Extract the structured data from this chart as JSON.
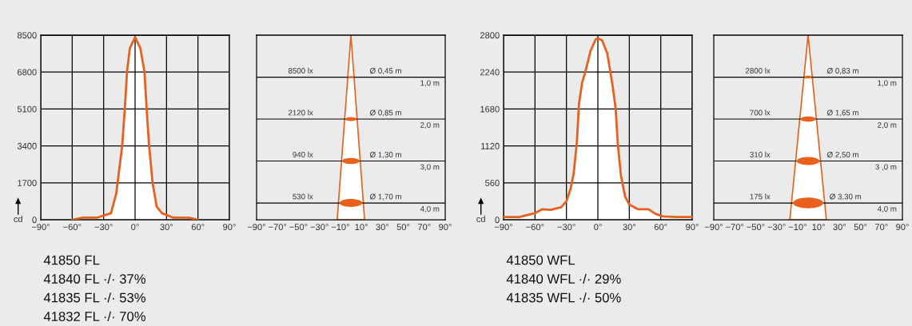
{
  "chart_data": [
    {
      "type": "area",
      "ylabel": "cd",
      "x": [
        -60,
        -50,
        -36,
        -29.6,
        -23,
        -18,
        -15.4,
        -12.3,
        -9.8,
        -7.7,
        -5,
        0,
        5,
        9,
        11,
        13.4,
        16.7,
        20.6,
        25.7,
        36,
        51,
        60
      ],
      "series": [
        {
          "color": "#e8601c",
          "values": [
            0,
            100,
            100,
            200,
            300,
            1200,
            2200,
            3400,
            5100,
            6800,
            7900,
            8400,
            7900,
            6800,
            5100,
            3400,
            1700,
            600,
            300,
            100,
            100,
            0
          ]
        }
      ],
      "xlim": [
        -90,
        90
      ],
      "xticks": [
        {
          "value": -90,
          "label": "−90°"
        },
        {
          "value": -60,
          "label": "−60°"
        },
        {
          "value": -30,
          "label": "−30°"
        },
        {
          "value": 0,
          "label": "0°"
        },
        {
          "value": 30,
          "label": "30°"
        },
        {
          "value": 60,
          "label": "60°"
        },
        {
          "value": 90,
          "label": "90°"
        }
      ],
      "ylim": [
        0,
        8500
      ],
      "yticks": [
        0,
        1700,
        3400,
        5100,
        6800,
        8500
      ],
      "grid": true,
      "annotations": [
        "41850 FL",
        "41840 FL ·/· 37%",
        "41835 FL ·/· 53%",
        "41832 FL ·/· 70%"
      ]
    },
    {
      "type": "bubble",
      "x": [
        0,
        0,
        0,
        0
      ],
      "values": [
        1,
        2,
        3,
        4
      ],
      "sizes": [
        0.07,
        0.25,
        0.58,
        1
      ],
      "color": "#e8601c",
      "annotations": [
        "8500 lx",
        "Ø 0,45 m",
        "2120 lx",
        "Ø 0,85 m",
        "940 lx",
        "Ø 1,30 m",
        "530 lx",
        "Ø 1,70 m"
      ],
      "ref_lines": [
        {
          "axis": "y",
          "value": 1,
          "label": "1,0 m"
        },
        {
          "axis": "y",
          "value": 2,
          "label": "2,0 m"
        },
        {
          "axis": "y",
          "value": 3,
          "label": "3,0 m"
        },
        {
          "axis": "y",
          "value": 4,
          "label": "4,0 m"
        }
      ],
      "xlim": [
        -90,
        90
      ],
      "xticks": [
        {
          "value": -90,
          "label": "−90°"
        },
        {
          "value": -70,
          "label": "−70°"
        },
        {
          "value": -50,
          "label": "−50°"
        },
        {
          "value": -30,
          "label": "−30°"
        },
        {
          "value": -10,
          "label": "−10°"
        },
        {
          "value": 10,
          "label": "10°"
        },
        {
          "value": 30,
          "label": "30°"
        },
        {
          "value": 50,
          "label": "50°"
        },
        {
          "value": 70,
          "label": "70°"
        },
        {
          "value": 90,
          "label": "90°"
        }
      ],
      "ylim": [
        4.4,
        0
      ],
      "tick_labels": "x"
    },
    {
      "type": "area",
      "ylabel": "cd",
      "x": [
        -90,
        -75,
        -65,
        -60,
        -53,
        -45,
        -35,
        -30,
        -26,
        -23,
        -20,
        -18,
        -15,
        -12,
        -7,
        -2,
        0,
        4,
        9,
        14,
        17,
        19,
        22,
        26,
        30,
        38,
        48,
        55,
        62,
        75,
        90
      ],
      "series": [
        {
          "color": "#e8601c",
          "values": [
            40,
            40,
            80,
            100,
            160,
            150,
            190,
            280,
            470,
            710,
            1190,
            1760,
            2080,
            2240,
            2560,
            2740,
            2750,
            2720,
            2520,
            2040,
            1680,
            1150,
            670,
            350,
            230,
            160,
            160,
            90,
            50,
            40,
            40
          ]
        }
      ],
      "xlim": [
        -90,
        90
      ],
      "xticks": [
        {
          "value": -90,
          "label": "−90°"
        },
        {
          "value": -60,
          "label": "−60°"
        },
        {
          "value": -30,
          "label": "−30°"
        },
        {
          "value": 0,
          "label": "0°"
        },
        {
          "value": 30,
          "label": "30°"
        },
        {
          "value": 60,
          "label": "60°"
        },
        {
          "value": 90,
          "label": "90°"
        }
      ],
      "ylim": [
        0,
        2800
      ],
      "yticks": [
        0,
        560,
        1120,
        1680,
        2240,
        2800
      ],
      "grid": true,
      "annotations": [
        "41850 WFL",
        "41840 WFL ·/· 29%",
        "41835 WFL ·/· 50%"
      ]
    },
    {
      "type": "bubble",
      "x": [
        0,
        0,
        0,
        0
      ],
      "values": [
        1,
        2,
        3,
        4
      ],
      "sizes": [
        0.06,
        0.25,
        0.57,
        1
      ],
      "color": "#e8601c",
      "annotations": [
        "2800 lx",
        "Ø 0,83 m",
        "700 lx",
        "Ø 1,65 m",
        "310 lx",
        "Ø 2,50 m",
        "175 lx",
        "Ø 3,30 m"
      ],
      "ref_lines": [
        {
          "axis": "y",
          "value": 1,
          "label": "1,0 m"
        },
        {
          "axis": "y",
          "value": 2,
          "label": "2,0 m"
        },
        {
          "axis": "y",
          "value": 3,
          "label": "3 ,0 m"
        },
        {
          "axis": "y",
          "value": 4,
          "label": "4,0 m"
        }
      ],
      "xlim": [
        -90,
        90
      ],
      "xticks": [
        {
          "value": -90,
          "label": "−90°"
        },
        {
          "value": -70,
          "label": "−70°"
        },
        {
          "value": -50,
          "label": "−50°"
        },
        {
          "value": -30,
          "label": "−30°"
        },
        {
          "value": -10,
          "label": "−10°"
        },
        {
          "value": 10,
          "label": "10°"
        },
        {
          "value": 30,
          "label": "30°"
        },
        {
          "value": 50,
          "label": "50°"
        },
        {
          "value": 70,
          "label": "70°"
        },
        {
          "value": 90,
          "label": "90°"
        }
      ],
      "ylim": [
        4.4,
        0
      ],
      "tick_labels": "x"
    }
  ]
}
